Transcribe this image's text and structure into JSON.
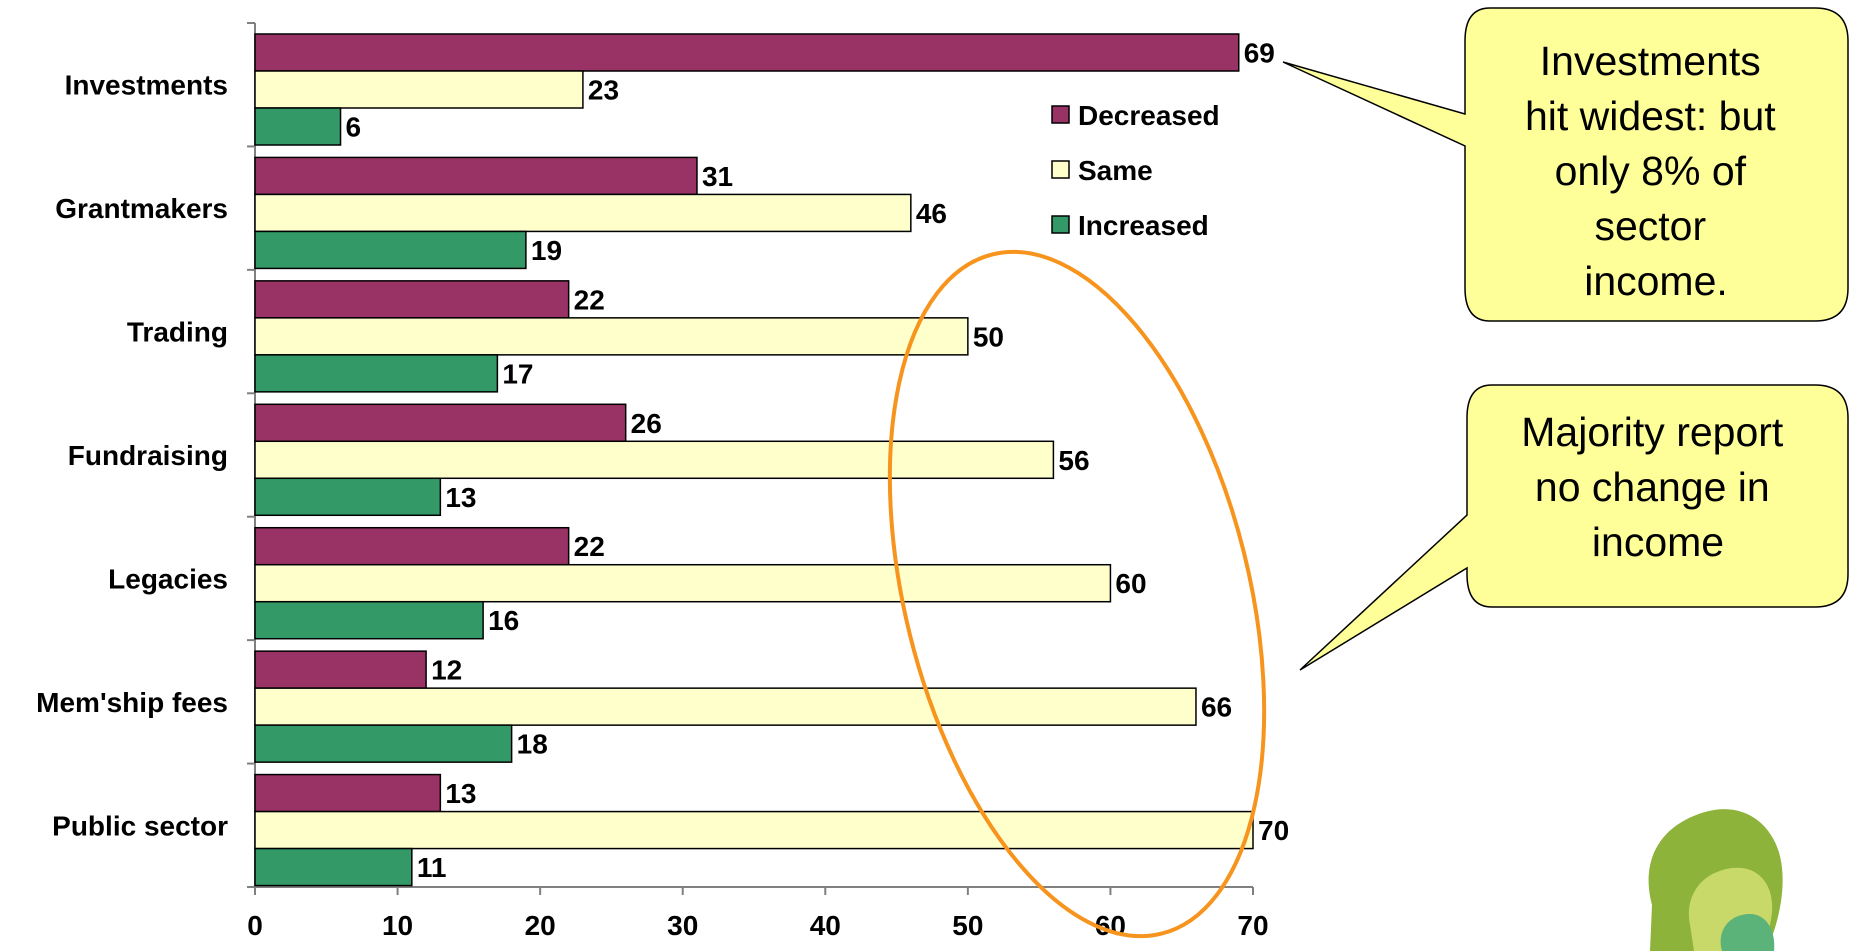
{
  "chart_data": {
    "type": "bar",
    "orientation": "horizontal",
    "categories": [
      "Investments",
      "Grantmakers",
      "Trading",
      "Fundraising",
      "Legacies",
      "Mem'ship fees",
      "Public sector"
    ],
    "series": [
      {
        "name": "Decreased",
        "color": "#993366",
        "values": [
          69,
          31,
          22,
          26,
          22,
          12,
          13
        ]
      },
      {
        "name": "Same",
        "color": "#FFFFCC",
        "values": [
          23,
          46,
          50,
          56,
          60,
          66,
          70
        ]
      },
      {
        "name": "Increased",
        "color": "#339966",
        "values": [
          6,
          19,
          17,
          13,
          16,
          18,
          11
        ]
      }
    ],
    "x_ticks": [
      "0",
      "10",
      "20",
      "30",
      "40",
      "50",
      "60",
      "70"
    ],
    "xlim": [
      0,
      70
    ],
    "data_labels": true,
    "grid": false,
    "legend_position": "right",
    "title": "",
    "xlabel": "",
    "ylabel": ""
  },
  "callouts": [
    {
      "lines": [
        "Investments",
        "hit widest: but",
        "only 8% of",
        "sector",
        "income."
      ]
    },
    {
      "lines": [
        "Majority report",
        "no change in",
        "income"
      ]
    }
  ],
  "colors": {
    "callout_fill": "#FFFF99",
    "ellipse_stroke": "#F7941D",
    "logo": [
      "#8DB33A",
      "#C8D96A",
      "#5BB37A"
    ]
  }
}
